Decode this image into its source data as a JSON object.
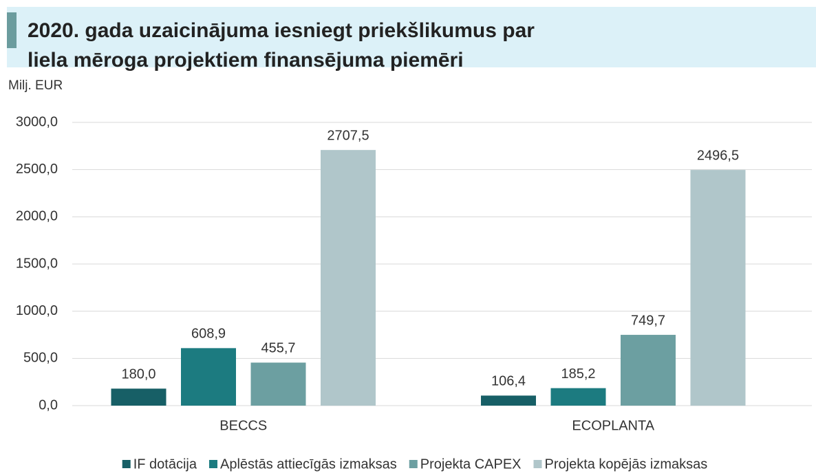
{
  "chart_data": {
    "type": "bar",
    "title": [
      "2020. gada uzaicinājuma iesniegt priekšlikumus par",
      "liela mēroga projektiem finansējuma piemēri"
    ],
    "y_label": "Milj. EUR",
    "categories": [
      "BECCS",
      "ECOPLANTA"
    ],
    "series": [
      {
        "name": "IF dotācija",
        "color": "#175f66",
        "values": [
          180.0,
          106.4
        ],
        "value_labels": [
          "180,0",
          "106,4"
        ]
      },
      {
        "name": "Aplēstās attiecīgās izmaksas",
        "color": "#1c7b80",
        "values": [
          608.9,
          185.2
        ],
        "value_labels": [
          "608,9",
          "185,2"
        ]
      },
      {
        "name": "Projekta CAPEX",
        "color": "#6c9fa1",
        "values": [
          455.7,
          749.7
        ],
        "value_labels": [
          "455,7",
          "749,7"
        ]
      },
      {
        "name": "Projekta kopējās izmaksas",
        "color": "#b0c6ca",
        "values": [
          2707.5,
          2496.5
        ],
        "value_labels": [
          "2707,5",
          "2496,5"
        ]
      }
    ],
    "ylim": [
      0,
      3000
    ],
    "yticks": [
      {
        "value": 0,
        "label": "0,0"
      },
      {
        "value": 500,
        "label": "500,0"
      },
      {
        "value": 1000,
        "label": "1000,0"
      },
      {
        "value": 1500,
        "label": "1500,0"
      },
      {
        "value": 2000,
        "label": "2000,0"
      },
      {
        "value": 2500,
        "label": "2500,0"
      },
      {
        "value": 3000,
        "label": "3000,0"
      }
    ],
    "grid": true,
    "legend": "bottom"
  }
}
